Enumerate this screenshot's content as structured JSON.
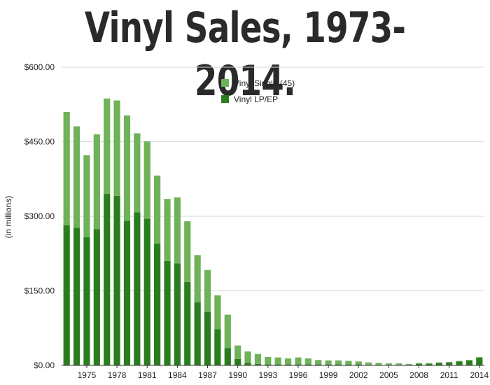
{
  "chart_data": {
    "type": "bar",
    "stacked": true,
    "title": "Vinyl Sales, 1973-2014.",
    "ylabel": "(in millions)",
    "xlabel": "",
    "ylim": [
      0,
      600
    ],
    "yticks": [
      {
        "value": 0,
        "label": "$0.00"
      },
      {
        "value": 150,
        "label": "$150.00"
      },
      {
        "value": 300,
        "label": "$300.00"
      },
      {
        "value": 450,
        "label": "$450.00"
      },
      {
        "value": 600,
        "label": "$600.00"
      }
    ],
    "grid": true,
    "legend_position": "top-center",
    "categories": [
      "1973",
      "1974",
      "1975",
      "1976",
      "1977",
      "1978",
      "1979",
      "1980",
      "1981",
      "1982",
      "1983",
      "1984",
      "1985",
      "1986",
      "1987",
      "1988",
      "1989",
      "1990",
      "1991",
      "1992",
      "1993",
      "1994",
      "1995",
      "1996",
      "1997",
      "1998",
      "1999",
      "2000",
      "2001",
      "2002",
      "2003",
      "2004",
      "2005",
      "2006",
      "2007",
      "2008",
      "2009",
      "2010",
      "2011",
      "2012",
      "2013",
      "2014"
    ],
    "xtick_labels": [
      "1975",
      "1978",
      "1981",
      "1984",
      "1987",
      "1990",
      "1993",
      "1996",
      "1999",
      "2002",
      "2005",
      "2008",
      "2011",
      "2014"
    ],
    "series": [
      {
        "name": "Vinyl LP/EP",
        "color": "#2a7d1f",
        "values": [
          282,
          277,
          258,
          274,
          345,
          341,
          291,
          308,
          295,
          245,
          210,
          205,
          168,
          127,
          108,
          73,
          35,
          13,
          5,
          3,
          2,
          2,
          2,
          2,
          2,
          2,
          2,
          2,
          2,
          2,
          1,
          1,
          1,
          1,
          1,
          3,
          3,
          5,
          6,
          8,
          10,
          15
        ]
      },
      {
        "name": "Vinyl Single (45)",
        "color": "#6fb25a",
        "values": [
          228,
          204,
          165,
          191,
          192,
          192,
          212,
          159,
          156,
          137,
          125,
          133,
          122,
          95,
          84,
          68,
          67,
          27,
          23,
          20,
          15,
          14,
          12,
          14,
          12,
          9,
          8,
          8,
          7,
          6,
          5,
          4,
          3,
          3,
          2,
          2,
          2,
          1,
          1,
          1,
          1,
          2
        ]
      }
    ]
  }
}
